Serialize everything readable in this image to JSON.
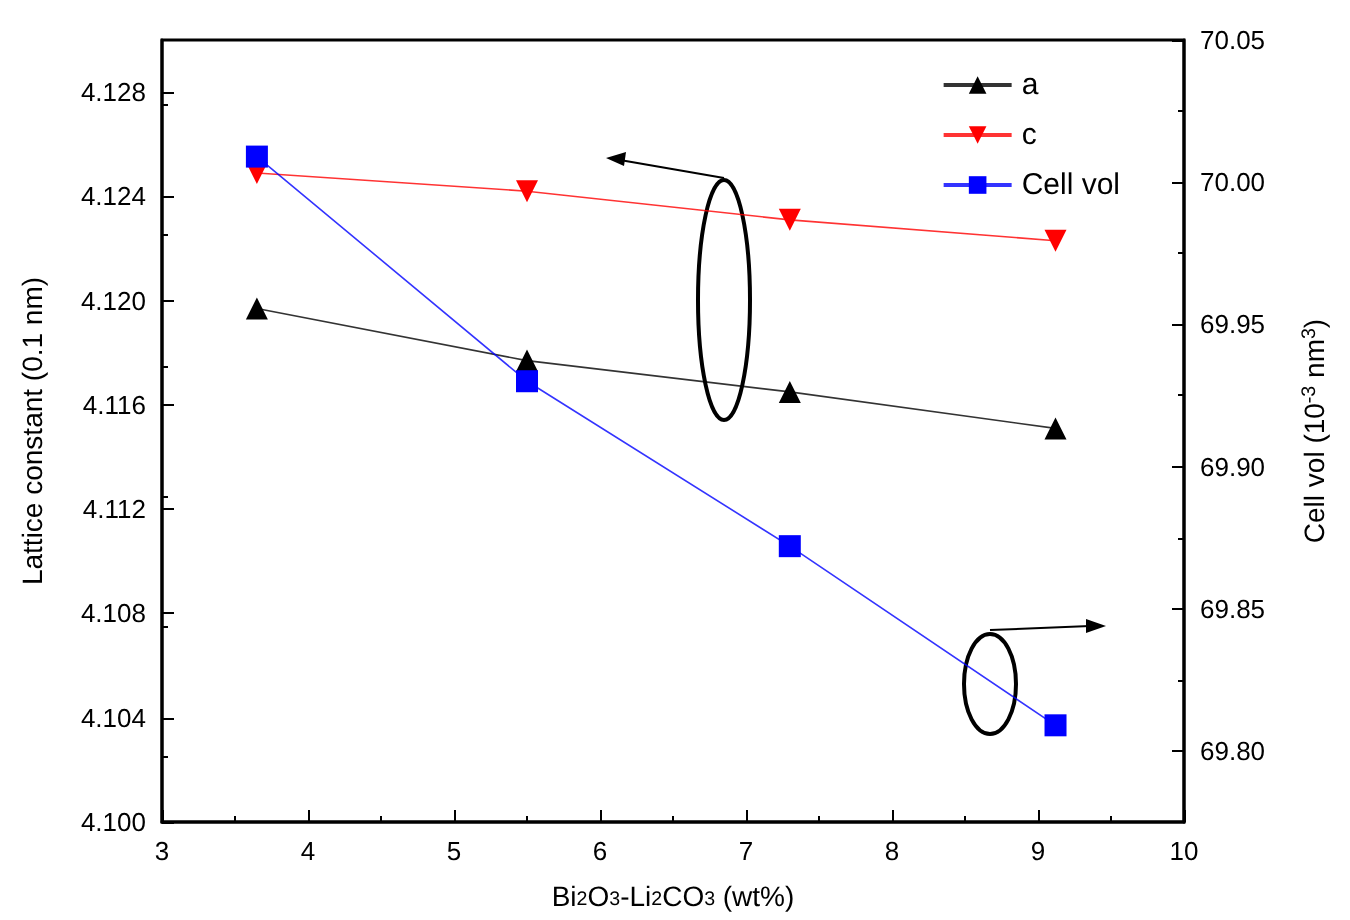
{
  "chart_data": {
    "type": "line",
    "xlabel": "Bi$_{2}$O$_{3}$-Li$_{2}$CO$_{3}$ (wt%)",
    "ylabel": "Lattice constant (0.1 nm)",
    "y2label": "Cell vol (10$^{-3}$ nm$^{3}$)",
    "x": [
      3.65,
      5.5,
      7.3,
      9.12
    ],
    "series": [
      {
        "name": "a",
        "color": "#000000",
        "marker": "triangle",
        "values": [
          4.1197,
          4.1177,
          4.1165,
          4.1151
        ]
      },
      {
        "name": "c",
        "color": "#ff0000",
        "marker": "triangle-down",
        "values": [
          4.1249,
          4.1242,
          4.1231,
          4.1223
        ]
      },
      {
        "name": "Cell vol",
        "color": "#0000ff",
        "marker": "square",
        "axis": "y2",
        "values": [
          70.009,
          69.93,
          69.872,
          69.809
        ]
      }
    ],
    "xlim": [
      3,
      10
    ],
    "xticks": [
      3,
      4,
      5,
      6,
      7,
      8,
      9,
      10
    ],
    "ylim": [
      4.1,
      4.13
    ],
    "yticks": [
      {
        "value": 4.1,
        "label": "4.100"
      },
      4.104,
      4.108,
      4.112,
      4.116,
      {
        "value": 4.12,
        "label": "4.120"
      },
      4.124,
      4.128
    ],
    "y2lim": [
      69.775,
      70.05
    ],
    "y2ticks": [
      {
        "value": 69.8,
        "label": "69.80"
      },
      69.85,
      {
        "value": 69.9,
        "label": "69.90"
      },
      69.95,
      {
        "value": 70.0,
        "label": "70.00"
      },
      70.05
    ],
    "grid": false,
    "legend": "top right",
    "line_style": "solid"
  }
}
